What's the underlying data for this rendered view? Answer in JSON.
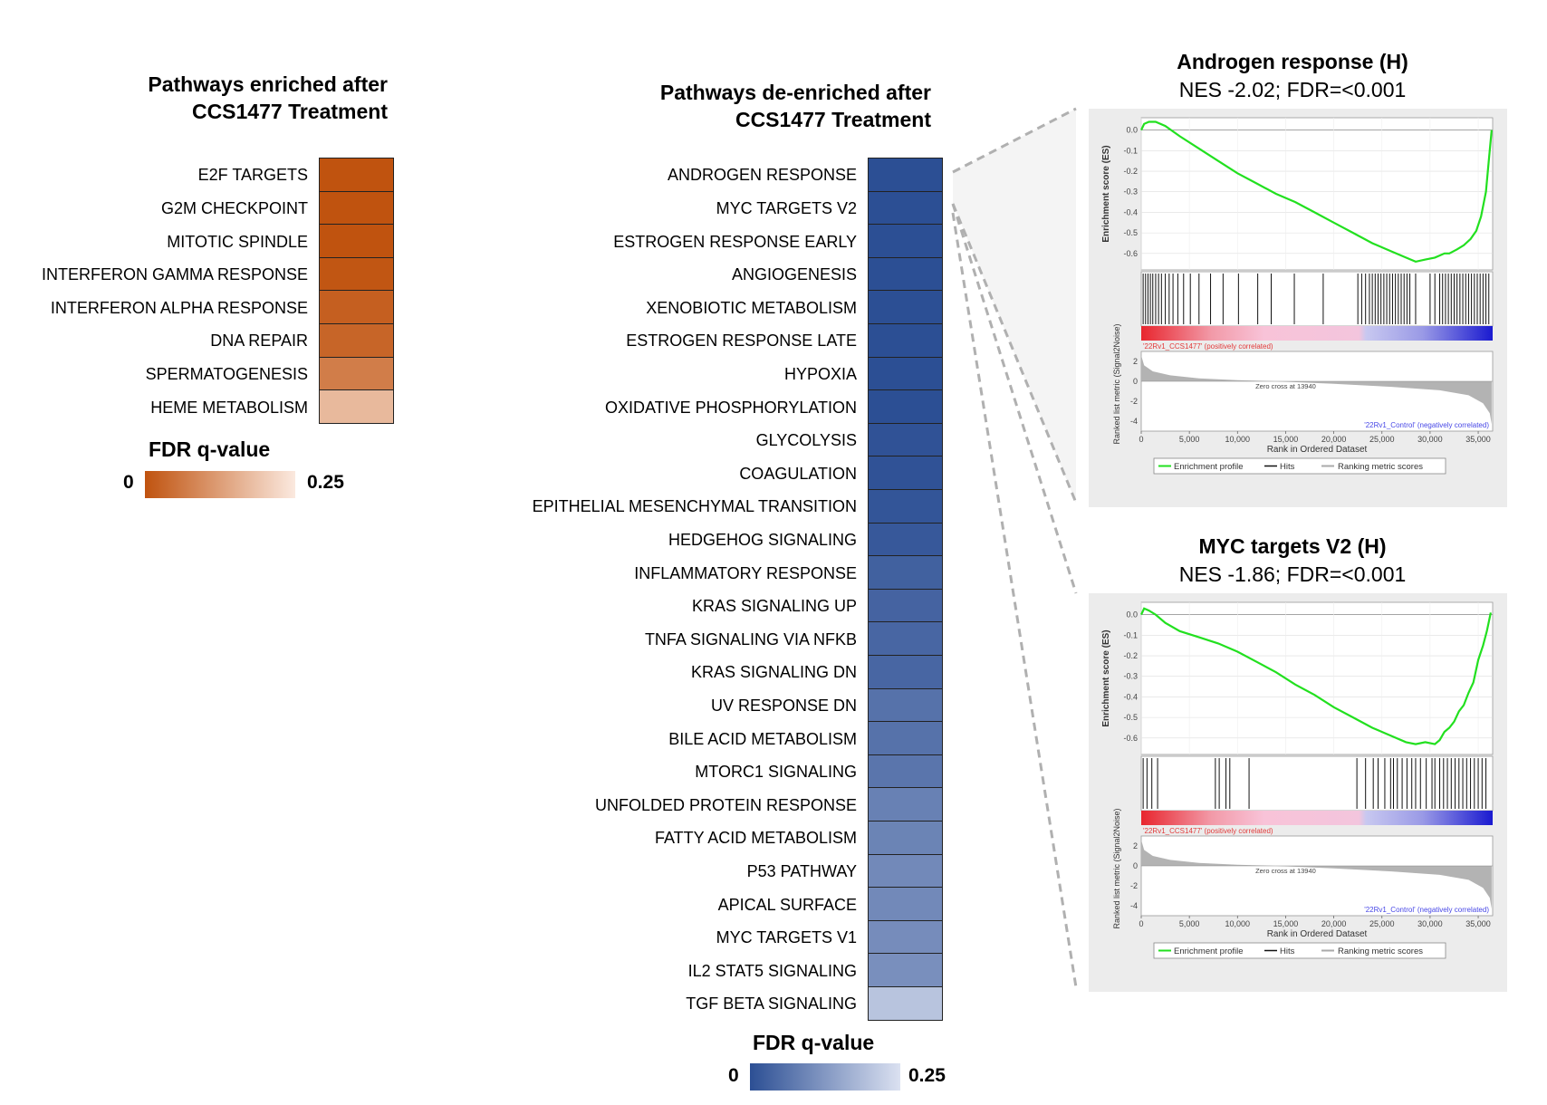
{
  "colors": {
    "enriched_high": "#c0530f",
    "enriched_low": "#fbe9df",
    "deenriched_high": "#2c4f94",
    "deenriched_low": "#dbe1f1",
    "es_curve": "#22e01f",
    "pos_corr_label": "#e23a3a",
    "neg_corr_label": "#4747e6",
    "ranking_fill": "#b3b3b3"
  },
  "chart_data": [
    {
      "type": "heatmap",
      "title_lines": [
        "Pathways enriched after",
        "CCS1477 Treatment"
      ],
      "categories": [
        "E2F TARGETS",
        "G2M CHECKPOINT",
        "MITOTIC SPINDLE",
        "INTERFERON GAMMA RESPONSE",
        "INTERFERON ALPHA RESPONSE",
        "DNA REPAIR",
        "SPERMATOGENESIS",
        "HEME METABOLISM"
      ],
      "values": [
        0.0,
        0.0,
        0.0,
        0.005,
        0.02,
        0.03,
        0.07,
        0.17
      ],
      "value_name": "FDR q-value",
      "color_scale": {
        "min": 0,
        "max": 0.25,
        "min_label": "0",
        "max_label": "0.25",
        "title": "FDR q-value"
      }
    },
    {
      "type": "heatmap",
      "title_lines": [
        "Pathways de-enriched after",
        "CCS1477 Treatment"
      ],
      "categories": [
        "ANDROGEN RESPONSE",
        "MYC TARGETS V2",
        "ESTROGEN RESPONSE EARLY",
        "ANGIOGENESIS",
        "XENOBIOTIC METABOLISM",
        "ESTROGEN RESPONSE LATE",
        "HYPOXIA",
        "OXIDATIVE PHOSPHORYLATION",
        "GLYCOLYSIS",
        "COAGULATION",
        "EPITHELIAL MESENCHYMAL TRANSITION",
        "HEDGEHOG SIGNALING",
        "INFLAMMATORY RESPONSE",
        "KRAS SIGNALING UP",
        "TNFA SIGNALING VIA NFKB",
        "KRAS SIGNALING DN",
        "UV RESPONSE DN",
        "BILE ACID METABOLISM",
        "MTORC1 SIGNALING",
        "UNFOLDED PROTEIN RESPONSE",
        "FATTY ACID METABOLISM",
        "P53 PATHWAY",
        "APICAL SURFACE",
        "MYC TARGETS V1",
        "IL2 STAT5 SIGNALING",
        "TGF BETA SIGNALING"
      ],
      "values": [
        0.0,
        0.0,
        0.0,
        0.0,
        0.0,
        0.0,
        0.0,
        0.0,
        0.005,
        0.005,
        0.01,
        0.015,
        0.03,
        0.035,
        0.04,
        0.04,
        0.06,
        0.06,
        0.065,
        0.085,
        0.09,
        0.1,
        0.1,
        0.105,
        0.11,
        0.2
      ],
      "value_name": "FDR q-value",
      "color_scale": {
        "min": 0,
        "max": 0.25,
        "min_label": "0",
        "max_label": "0.25",
        "title": "FDR q-value"
      }
    },
    {
      "type": "line",
      "title": "Androgen response (H)",
      "subtitle": "NES -2.02; FDR=<0.001",
      "ylabel": "Enrichment score (ES)",
      "ylim": [
        -0.68,
        0.06
      ],
      "yticks": [
        "0.0",
        "-0.1",
        "-0.2",
        "-0.3",
        "-0.4",
        "-0.5",
        "-0.6"
      ],
      "series": [
        {
          "name": "Enrichment profile",
          "x": [
            0,
            300,
            800,
            1500,
            2500,
            4000,
            6000,
            8000,
            10000,
            12000,
            14000,
            16000,
            18000,
            20000,
            22000,
            24000,
            26000,
            27500,
            28500,
            29500,
            30500,
            31000,
            31500,
            32000,
            32800,
            33500,
            34200,
            34800,
            35300,
            35800,
            36100,
            36400
          ],
          "y": [
            0.0,
            0.03,
            0.04,
            0.04,
            0.02,
            -0.03,
            -0.09,
            -0.15,
            -0.21,
            -0.26,
            -0.31,
            -0.35,
            -0.4,
            -0.45,
            -0.5,
            -0.55,
            -0.59,
            -0.62,
            -0.64,
            -0.63,
            -0.62,
            -0.61,
            -0.6,
            -0.6,
            -0.58,
            -0.56,
            -0.53,
            -0.49,
            -0.42,
            -0.3,
            -0.15,
            0.0
          ]
        }
      ],
      "hits": [
        200,
        450,
        700,
        950,
        1200,
        1500,
        1800,
        2100,
        2500,
        2900,
        3300,
        3800,
        4400,
        5100,
        6000,
        7200,
        8500,
        10100,
        12100,
        13500,
        15900,
        18900,
        22500,
        22900,
        23300,
        23700,
        24000,
        24300,
        24600,
        24900,
        25200,
        25500,
        25800,
        26100,
        26400,
        26700,
        27000,
        27300,
        27600,
        27900,
        28500,
        30000,
        30500,
        31000,
        31300,
        31600,
        31900,
        32200,
        32500,
        32800,
        33100,
        33400,
        33700,
        34000,
        34300,
        34600,
        34900,
        35200,
        35500,
        35800,
        36100
      ],
      "ranking_title": "Ranked list metric (Signal2Noise)",
      "ranking_yticks": [
        "2",
        "0",
        "-2",
        "-4"
      ],
      "xlabel": "Rank in Ordered Dataset",
      "xticks": [
        "0",
        "5,000",
        "10,000",
        "15,000",
        "20,000",
        "25,000",
        "30,000",
        "35,000"
      ],
      "zero_cross_label": "Zero cross at 13940",
      "pos_label": "'22Rv1_CCS1477' (positively correlated)",
      "neg_label": "'22Rv1_Control' (negatively correlated)",
      "legend": [
        "Enrichment profile",
        "Hits",
        "Ranking metric scores"
      ]
    },
    {
      "type": "line",
      "title": "MYC targets V2 (H)",
      "subtitle": "NES -1.86; FDR=<0.001",
      "ylabel": "Enrichment score (ES)",
      "ylim": [
        -0.68,
        0.06
      ],
      "yticks": [
        "0.0",
        "-0.1",
        "-0.2",
        "-0.3",
        "-0.4",
        "-0.5",
        "-0.6"
      ],
      "series": [
        {
          "name": "Enrichment profile",
          "x": [
            0,
            300,
            800,
            1500,
            2500,
            4000,
            6000,
            8000,
            10000,
            12000,
            14000,
            16000,
            18000,
            20000,
            22000,
            24000,
            26000,
            27500,
            28500,
            29500,
            30500,
            31000,
            31500,
            32000,
            32500,
            33000,
            33500,
            34000,
            34500,
            35000,
            35500,
            35900,
            36300
          ],
          "y": [
            0.0,
            0.03,
            0.02,
            0.0,
            -0.04,
            -0.08,
            -0.11,
            -0.14,
            -0.18,
            -0.23,
            -0.28,
            -0.34,
            -0.39,
            -0.45,
            -0.5,
            -0.55,
            -0.59,
            -0.62,
            -0.63,
            -0.62,
            -0.63,
            -0.61,
            -0.57,
            -0.55,
            -0.52,
            -0.47,
            -0.44,
            -0.38,
            -0.33,
            -0.22,
            -0.15,
            -0.08,
            0.01
          ]
        }
      ],
      "hits": [
        200,
        600,
        1100,
        1700,
        7700,
        8100,
        8800,
        9200,
        11200,
        22400,
        23300,
        24100,
        24600,
        25300,
        25900,
        26200,
        26600,
        27100,
        27600,
        28100,
        28500,
        29000,
        29600,
        30200,
        30500,
        31000,
        31400,
        31800,
        32200,
        32600,
        33000,
        33400,
        33800,
        34200,
        34600,
        35000,
        35400,
        35800
      ],
      "ranking_title": "Ranked list metric (Signal2Noise)",
      "ranking_yticks": [
        "2",
        "0",
        "-2",
        "-4"
      ],
      "xlabel": "Rank in Ordered Dataset",
      "xticks": [
        "0",
        "5,000",
        "10,000",
        "15,000",
        "20,000",
        "25,000",
        "30,000",
        "35,000"
      ],
      "zero_cross_label": "Zero cross at 13940",
      "pos_label": "'22Rv1_CCS1477' (positively correlated)",
      "neg_label": "'22Rv1_Control' (negatively correlated)",
      "legend": [
        "Enrichment profile",
        "Hits",
        "Ranking metric scores"
      ]
    }
  ]
}
